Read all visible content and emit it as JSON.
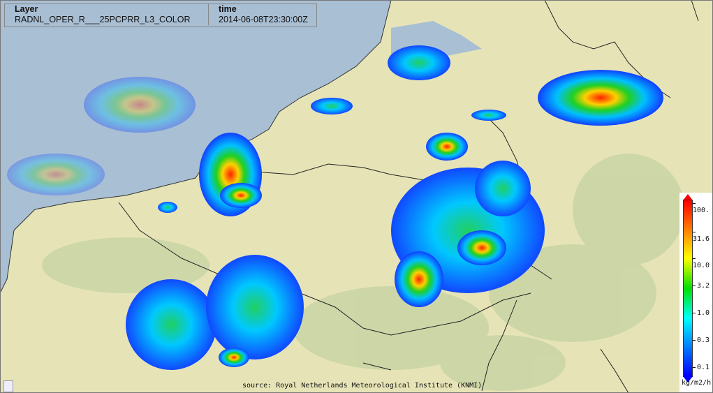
{
  "layer_info": {
    "header_layer": "Layer",
    "header_time": "time",
    "layer_name": "RADNL_OPER_R___25PCPRR_L3_COLOR",
    "time_value": "2014-06-08T23:30:00Z"
  },
  "legend": {
    "ticks": [
      "100.",
      "31.6",
      "10.0",
      "3.2",
      "1.0",
      "0.3",
      "0.1"
    ],
    "unit": "kg/m2/h",
    "colors": [
      "#0000ff",
      "#0080ff",
      "#00ffff",
      "#00e000",
      "#ffff00",
      "#ff8000",
      "#ff0000"
    ]
  },
  "source": "source: Royal Netherlands Meteorological Institute (KNMI)",
  "colors": {
    "sea": "#a8bfd4",
    "land": "#e6e4b6",
    "border": "#222222"
  }
}
